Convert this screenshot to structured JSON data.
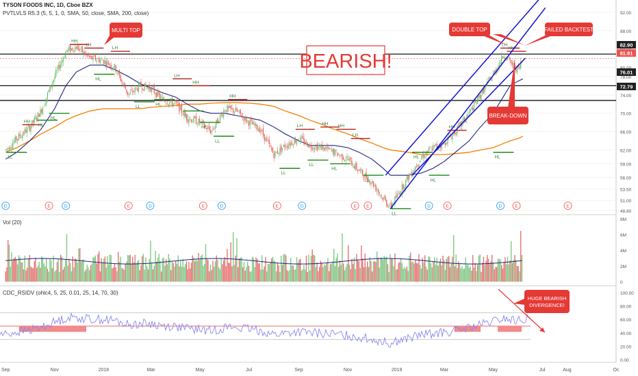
{
  "header": {
    "title": "TYSON FOODS INC, 1D, Cboe BZX",
    "indicator": "PVTLVLS R5.3 (5, 5, 1, 0, SMA, 50, close, SMA, 200, close)",
    "volume_label": "Vol (20)",
    "oscillator_label": "CDC_RSIDV (ohlc4, 5, 25, 0.01, 25, 14, 70, 30)"
  },
  "annotations": {
    "big_label": "BEARISH!",
    "multi_top": "MULTI TOP",
    "double_top": "DOUBLE TOP",
    "failed_backtest": "FAILED BACKTEST",
    "break_down": "BREAK-DOWN",
    "divergence_line1": "HUGE BEARISH",
    "divergence_line2": "DIVERGENCE!"
  },
  "colors": {
    "up": "#66bb6a",
    "down": "#ef5350",
    "sma50": "#1a237e",
    "sma200": "#f57c00",
    "channel": "#1010d0",
    "label_red": "#e53935",
    "pivot_high": "#b71c1c",
    "pivot_low": "#1b8a1b",
    "rsi": "#8888ee"
  },
  "chart_data": [
    {
      "type": "line",
      "name": "price",
      "x": [
        "2017-09-01",
        "2017-09-15",
        "2017-10-01",
        "2017-10-15",
        "2017-11-01",
        "2017-11-15",
        "2017-11-28",
        "2017-12-15",
        "2018-01-01",
        "2018-01-15",
        "2018-02-01",
        "2018-02-15",
        "2018-03-01",
        "2018-03-15",
        "2018-04-01",
        "2018-04-15",
        "2018-05-01",
        "2018-05-15",
        "2018-06-01",
        "2018-06-15",
        "2018-07-01",
        "2018-07-15",
        "2018-08-01",
        "2018-08-15",
        "2018-09-01",
        "2018-09-15",
        "2018-10-01",
        "2018-10-15",
        "2018-11-01",
        "2018-11-15",
        "2018-12-01",
        "2018-12-15",
        "2018-12-24",
        "2019-01-15",
        "2019-02-01",
        "2019-02-15",
        "2019-03-01",
        "2019-03-15",
        "2019-04-01",
        "2019-04-15",
        "2019-05-01",
        "2019-05-15",
        "2019-05-22",
        "2019-06-01",
        "2019-06-07"
      ],
      "values": [
        62.0,
        64.5,
        67.0,
        70.5,
        78.0,
        83.5,
        84.5,
        82.0,
        81.5,
        80.0,
        74.0,
        76.0,
        75.5,
        73.0,
        72.0,
        69.0,
        68.0,
        66.0,
        71.0,
        70.5,
        68.0,
        66.5,
        61.0,
        63.0,
        64.5,
        63.0,
        62.5,
        61.5,
        60.0,
        57.5,
        55.0,
        51.5,
        49.5,
        56.0,
        60.5,
        62.5,
        63.5,
        66.0,
        70.0,
        74.0,
        78.5,
        83.0,
        81.0,
        79.5,
        82.0
      ],
      "sma50": [
        60.0,
        61.5,
        64.0,
        66.5,
        71.0,
        76.0,
        79.0,
        80.5,
        80.5,
        79.5,
        78.0,
        76.5,
        75.5,
        74.5,
        73.5,
        72.0,
        70.5,
        70.0,
        70.0,
        69.5,
        69.0,
        68.5,
        67.0,
        65.5,
        64.0,
        63.0,
        63.0,
        63.0,
        62.5,
        61.5,
        60.0,
        58.0,
        56.5,
        56.5,
        57.0,
        58.0,
        59.5,
        61.5,
        64.0,
        67.0,
        70.0,
        74.0,
        76.0,
        77.0,
        77.5
      ],
      "sma200": [
        61.5,
        62.5,
        64.0,
        65.5,
        67.0,
        68.5,
        69.5,
        70.5,
        71.0,
        71.0,
        71.0,
        71.0,
        71.3,
        71.5,
        71.7,
        72.0,
        72.0,
        72.2,
        72.3,
        72.3,
        72.2,
        72.0,
        71.5,
        70.5,
        69.5,
        68.5,
        67.5,
        66.5,
        65.5,
        64.5,
        63.5,
        62.5,
        62.0,
        61.5,
        61.0,
        61.0,
        61.0,
        61.2,
        61.5,
        62.0,
        62.5,
        63.5,
        64.0,
        64.5,
        65.0
      ],
      "y_axis_ticks": [
        92.0,
        88.0,
        84.0,
        80.0,
        78.0,
        74.0,
        70.0,
        66.0,
        62.0,
        59.0,
        56.0,
        53.5,
        51.0,
        48.8
      ],
      "price_labels": {
        "resistance": "82.90",
        "last": "81.91",
        "level_mid": "76.01",
        "level_low": "72.79"
      },
      "x_axis_labels": [
        "Sep",
        "Nov",
        "2018",
        "Mar",
        "May",
        "Jul",
        "Sep",
        "Nov",
        "2019",
        "Mar",
        "May",
        "Jul",
        "Aug",
        "Oc"
      ],
      "horizontal_levels": [
        82.9,
        76.01,
        72.79
      ],
      "pivot_labels_high": [
        "HH",
        "HH",
        "LH",
        "LH",
        "LH",
        "HH",
        "HH",
        "LH",
        "HH",
        "HH",
        "LH",
        "HH",
        "LH",
        "HH",
        "HH",
        "HH"
      ],
      "pivot_labels_low": [
        "LL",
        "HL",
        "HL",
        "HL",
        "LL",
        "HL",
        "LL",
        "HL",
        "LL",
        "LL",
        "LL",
        "HL",
        "LL",
        "LL",
        "HL",
        "HL",
        "HL",
        "HL"
      ],
      "event_markers": [
        "D",
        "E",
        "D",
        "E",
        "D",
        "E",
        "D",
        "E",
        "D",
        "E",
        "E",
        "D",
        "E",
        "D",
        "E"
      ]
    },
    {
      "type": "bar",
      "name": "Vol (20)",
      "ylim": [
        0,
        8
      ],
      "y_axis_ticks": [
        "8M",
        "6M",
        "4M",
        "2M",
        "0"
      ],
      "note_units": "millions"
    },
    {
      "type": "line",
      "name": "CDC_RSIDV",
      "ylim": [
        0,
        100
      ],
      "y_axis_ticks": [
        "100.00",
        "80.00",
        "60.00",
        "40.00",
        "20.00",
        "0.00"
      ],
      "levels": [
        70,
        50,
        30
      ]
    }
  ]
}
